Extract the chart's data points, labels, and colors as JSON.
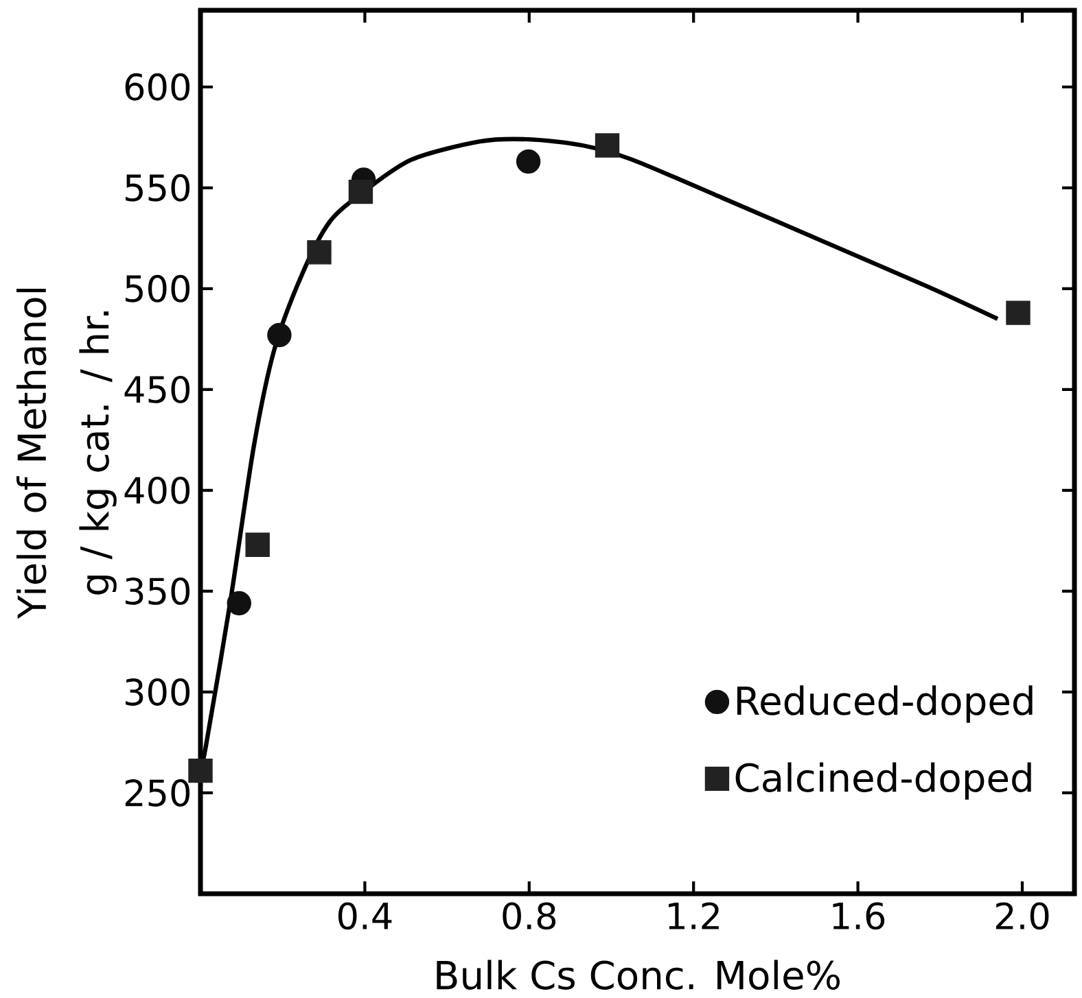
{
  "chart_data": {
    "type": "scatter",
    "xlabel": "Bulk Cs Conc. Mole%",
    "ylabel": "Yield of Methanol g / kg cat. / hr.",
    "xlim": [
      0,
      2.127
    ],
    "ylim": [
      200,
      638
    ],
    "xticks": [
      {
        "value": 0.4,
        "label": "0.4"
      },
      {
        "value": 0.8,
        "label": "0.8"
      },
      {
        "value": 1.2,
        "label": "1.2"
      },
      {
        "value": 1.6,
        "label": "1.6"
      },
      {
        "value": 2.0,
        "label": "2.0"
      }
    ],
    "yticks": [
      250,
      300,
      350,
      400,
      450,
      500,
      550,
      600
    ],
    "grid": false,
    "legend": "bottom right",
    "series": [
      {
        "name": "Reduced-doped",
        "color": "#111111",
        "marker": "circle",
        "x": [
          0.094,
          0.192,
          0.397,
          0.798
        ],
        "values": [
          344,
          477,
          554,
          563
        ]
      },
      {
        "name": "Calcined-doped",
        "color": "#222222",
        "marker": "square",
        "x": [
          0,
          0.139,
          0.289,
          0.39,
          0.99,
          1.99
        ],
        "values": [
          261,
          373,
          518,
          548,
          571,
          488
        ]
      },
      {
        "type": "line",
        "color": "#000000",
        "line_style": "solid",
        "x": [
          0.0,
          0.013,
          0.072,
          0.13,
          0.18,
          0.247,
          0.314,
          0.397,
          0.514,
          0.681,
          0.798,
          0.93,
          1.05,
          1.27,
          1.52,
          1.77,
          1.94
        ],
        "values": [
          262,
          273,
          344,
          422,
          470,
          507,
          533,
          548,
          564,
          573,
          574,
          571,
          564,
          545,
          523,
          501,
          485
        ]
      }
    ]
  }
}
